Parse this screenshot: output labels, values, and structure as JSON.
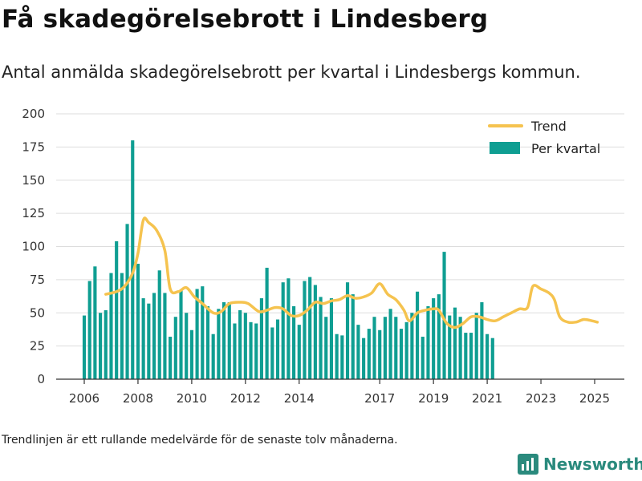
{
  "header": {
    "title": "Få skadegörelsebrott i Lindesberg",
    "subtitle": "Antal anmälda skadegörelsebrott per kvartal i Lindesbergs kommun."
  },
  "footnote": "Trendlinjen är ett rullande medelvärde för de senaste tolv månaderna.",
  "brand": {
    "name": "Newsworthy",
    "icon": "newsworthy-chart-logo-icon"
  },
  "colors": {
    "bars": "#0f9e92",
    "trend": "#f5c34f",
    "grid": "#dddddd",
    "axis": "#333333",
    "brand": "#2a8a7d"
  },
  "chart_data": {
    "type": "bar",
    "title": "",
    "xlabel": "",
    "ylabel": "",
    "ylim": [
      0,
      200
    ],
    "yticks": [
      0,
      25,
      50,
      75,
      100,
      125,
      150,
      175,
      200
    ],
    "xticks": [
      {
        "x": 2006.0,
        "label": "2006"
      },
      {
        "x": 2008.0,
        "label": "2008"
      },
      {
        "x": 2010.0,
        "label": "2010"
      },
      {
        "x": 2012.0,
        "label": "2012"
      },
      {
        "x": 2014.0,
        "label": "2014"
      },
      {
        "x": 2017.0,
        "label": "2017"
      },
      {
        "x": 2019.0,
        "label": "2019"
      },
      {
        "x": 2021.0,
        "label": "2021"
      },
      {
        "x": 2023.0,
        "label": "2023"
      },
      {
        "x": 2025.0,
        "label": "2025"
      }
    ],
    "grid": true,
    "legend": {
      "position": "top-right"
    },
    "series": [
      {
        "name": "Per kvartal",
        "type": "bar",
        "start": 2006.0,
        "step": 0.2,
        "values": [
          48,
          74,
          85,
          50,
          52,
          80,
          104,
          80,
          117,
          180,
          87,
          61,
          57,
          65,
          82,
          65,
          32,
          47,
          67,
          50,
          37,
          68,
          70,
          55,
          34,
          53,
          58,
          58,
          42,
          52,
          50,
          43,
          42,
          61,
          84,
          39,
          45,
          73,
          76,
          55,
          41,
          74,
          77,
          71,
          62,
          47,
          61,
          34,
          33,
          73,
          64,
          41,
          31,
          38,
          47,
          37,
          47,
          53,
          47,
          38,
          43,
          50,
          66,
          32,
          55,
          61,
          64,
          96,
          48,
          54,
          47,
          35,
          35,
          50,
          58,
          34,
          31
        ]
      },
      {
        "name": "Trend",
        "type": "line",
        "points": [
          [
            2006.8,
            64
          ],
          [
            2007.2,
            66
          ],
          [
            2007.5,
            70
          ],
          [
            2007.8,
            80
          ],
          [
            2008.0,
            95
          ],
          [
            2008.2,
            120
          ],
          [
            2008.4,
            118
          ],
          [
            2008.7,
            112
          ],
          [
            2009.0,
            97
          ],
          [
            2009.2,
            68
          ],
          [
            2009.5,
            66
          ],
          [
            2009.8,
            69
          ],
          [
            2010.1,
            62
          ],
          [
            2010.4,
            57
          ],
          [
            2010.8,
            50
          ],
          [
            2011.1,
            51
          ],
          [
            2011.4,
            57
          ],
          [
            2011.8,
            58
          ],
          [
            2012.1,
            57
          ],
          [
            2012.5,
            51
          ],
          [
            2012.8,
            52
          ],
          [
            2013.1,
            54
          ],
          [
            2013.4,
            53
          ],
          [
            2013.7,
            48
          ],
          [
            2014.0,
            48
          ],
          [
            2014.3,
            52
          ],
          [
            2014.6,
            58
          ],
          [
            2014.9,
            57
          ],
          [
            2015.2,
            59
          ],
          [
            2015.5,
            60
          ],
          [
            2015.8,
            63
          ],
          [
            2016.1,
            61
          ],
          [
            2016.4,
            62
          ],
          [
            2016.7,
            65
          ],
          [
            2017.0,
            72
          ],
          [
            2017.3,
            64
          ],
          [
            2017.6,
            60
          ],
          [
            2017.9,
            52
          ],
          [
            2018.1,
            44
          ],
          [
            2018.4,
            50
          ],
          [
            2018.7,
            52
          ],
          [
            2019.0,
            53
          ],
          [
            2019.2,
            52
          ],
          [
            2019.5,
            42
          ],
          [
            2019.8,
            39
          ],
          [
            2020.1,
            42
          ],
          [
            2020.4,
            47
          ],
          [
            2020.7,
            47
          ],
          [
            2021.0,
            45
          ],
          [
            2021.3,
            44
          ],
          [
            2021.6,
            47
          ],
          [
            2021.9,
            50
          ],
          [
            2022.2,
            53
          ],
          [
            2022.5,
            54
          ],
          [
            2022.7,
            70
          ],
          [
            2023.0,
            68
          ],
          [
            2023.3,
            65
          ],
          [
            2023.5,
            60
          ],
          [
            2023.7,
            47
          ],
          [
            2024.0,
            43
          ],
          [
            2024.3,
            43
          ],
          [
            2024.6,
            45
          ],
          [
            2024.9,
            44
          ],
          [
            2025.1,
            43
          ]
        ]
      }
    ]
  }
}
